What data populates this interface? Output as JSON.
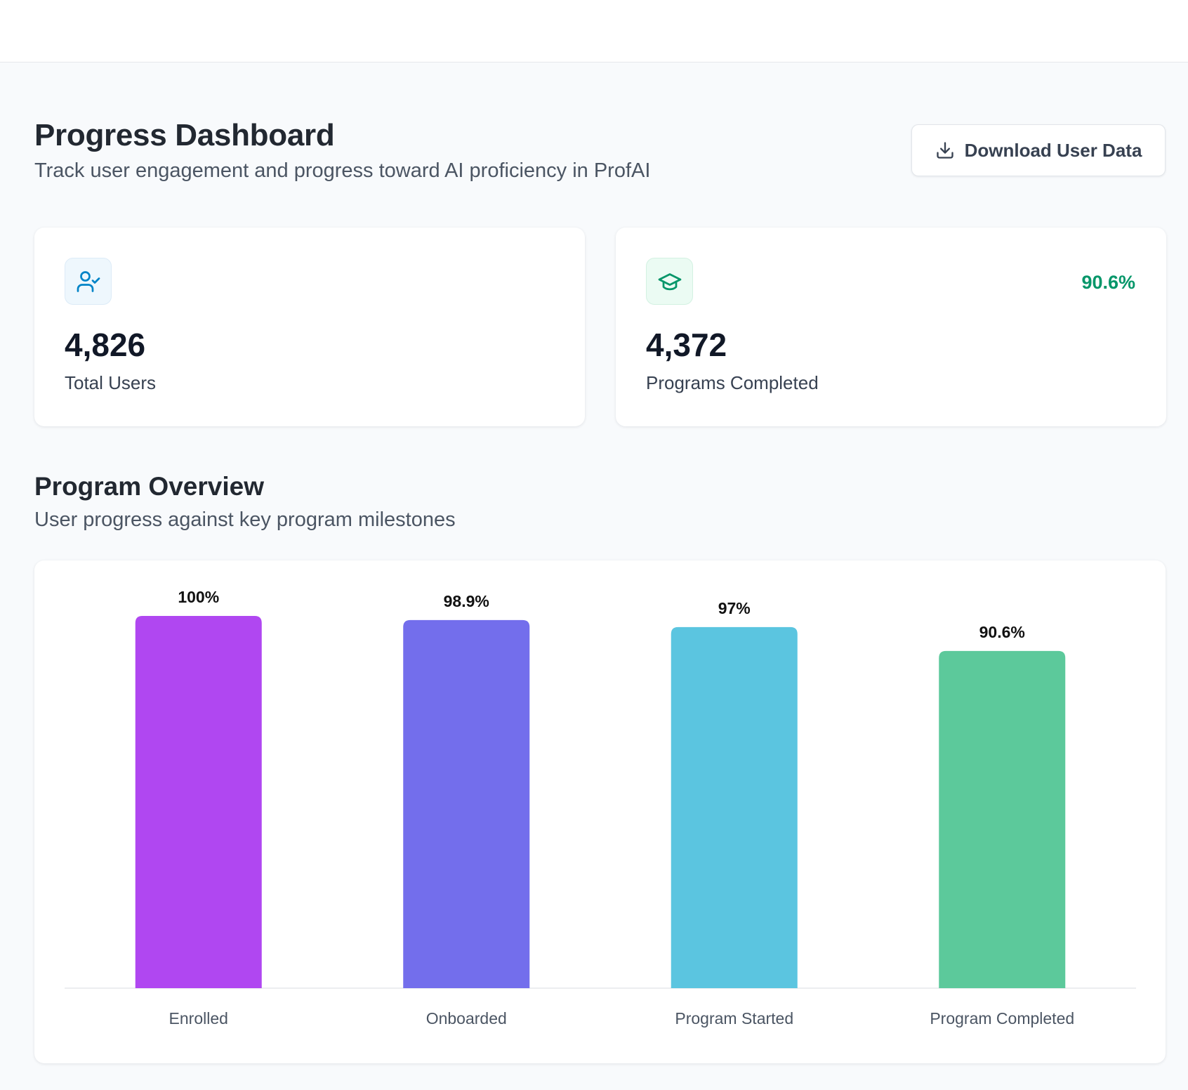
{
  "header": {
    "title": "Progress Dashboard",
    "subtitle": "Track user engagement and progress toward AI proficiency in ProfAI",
    "download_label": "Download User Data"
  },
  "stats": {
    "total_users": {
      "value": "4,826",
      "label": "Total Users",
      "icon": "user-check-icon",
      "icon_color": "#0284c7"
    },
    "programs_completed": {
      "value": "4,372",
      "label": "Programs Completed",
      "badge": "90.6%",
      "icon": "graduation-cap-icon",
      "icon_color": "#059669"
    }
  },
  "overview": {
    "title": "Program Overview",
    "subtitle": "User progress against key program milestones"
  },
  "chart_data": {
    "type": "bar",
    "categories": [
      "Enrolled",
      "Onboarded",
      "Program Started",
      "Program Completed"
    ],
    "values": [
      100,
      98.9,
      97,
      90.6
    ],
    "value_labels": [
      "100%",
      "98.9%",
      "97%",
      "90.6%"
    ],
    "colors": [
      "#b047f1",
      "#736eec",
      "#5bc5e0",
      "#5cc99b"
    ],
    "ylim": [
      0,
      100
    ],
    "grid": false,
    "legend": "none",
    "title": "",
    "xlabel": "",
    "ylabel": ""
  }
}
